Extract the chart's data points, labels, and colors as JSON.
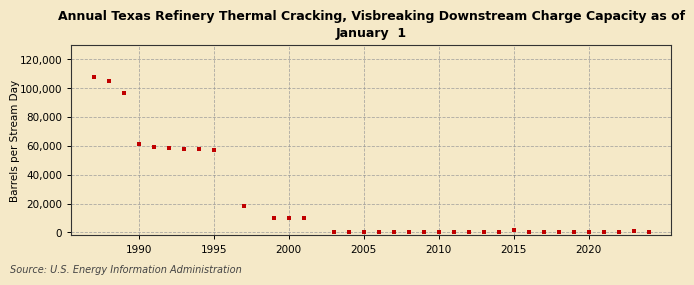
{
  "title": "Annual Texas Refinery Thermal Cracking, Visbreaking Downstream Charge Capacity as of\nJanuary  1",
  "ylabel": "Barrels per Stream Day",
  "source": "Source: U.S. Energy Information Administration",
  "background_color": "#f5e9c8",
  "plot_bg_color": "#f5e9c8",
  "marker_color": "#c00000",
  "grid_color": "#999999",
  "spine_color": "#333333",
  "xlim": [
    1985.5,
    2025.5
  ],
  "ylim": [
    -2000,
    130000
  ],
  "yticks": [
    0,
    20000,
    40000,
    60000,
    80000,
    100000,
    120000
  ],
  "xticks": [
    1990,
    1995,
    2000,
    2005,
    2010,
    2015,
    2020
  ],
  "data": [
    [
      1987,
      108000
    ],
    [
      1988,
      105000
    ],
    [
      1989,
      97000
    ],
    [
      1990,
      61000
    ],
    [
      1991,
      59500
    ],
    [
      1992,
      58500
    ],
    [
      1993,
      58000
    ],
    [
      1994,
      58000
    ],
    [
      1995,
      57500
    ],
    [
      1997,
      18000
    ],
    [
      1999,
      10000
    ],
    [
      2000,
      10000
    ],
    [
      2001,
      10000
    ],
    [
      2003,
      400
    ],
    [
      2004,
      400
    ],
    [
      2005,
      400
    ],
    [
      2006,
      400
    ],
    [
      2007,
      400
    ],
    [
      2008,
      400
    ],
    [
      2009,
      400
    ],
    [
      2010,
      400
    ],
    [
      2011,
      400
    ],
    [
      2012,
      400
    ],
    [
      2013,
      400
    ],
    [
      2014,
      400
    ],
    [
      2015,
      1500
    ],
    [
      2016,
      400
    ],
    [
      2017,
      400
    ],
    [
      2018,
      400
    ],
    [
      2019,
      400
    ],
    [
      2020,
      400
    ],
    [
      2021,
      400
    ],
    [
      2022,
      400
    ],
    [
      2023,
      800
    ],
    [
      2024,
      400
    ]
  ]
}
